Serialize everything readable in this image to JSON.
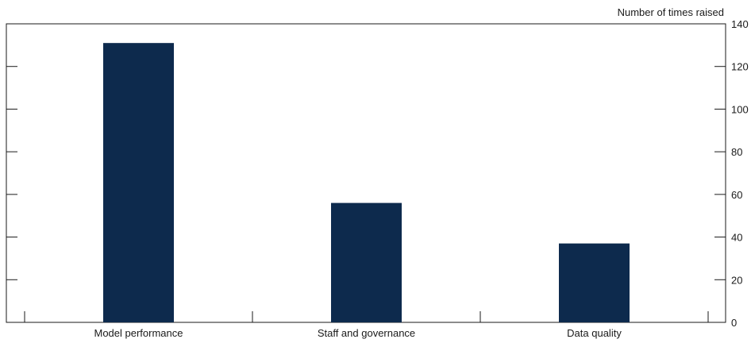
{
  "chart_data": {
    "type": "bar",
    "title": "",
    "ylabel": "Number of times raised",
    "xlabel": "",
    "categories": [
      "Model performance",
      "Staff and governance",
      "Data quality"
    ],
    "values": [
      131,
      56,
      37
    ],
    "ylim": [
      0,
      140
    ],
    "yticks": [
      0,
      20,
      40,
      60,
      80,
      100,
      120,
      140
    ],
    "y_axis_side": "right",
    "grid": false,
    "bar_color": "#0d2a4d",
    "axis_color": "#1a1a1a"
  }
}
